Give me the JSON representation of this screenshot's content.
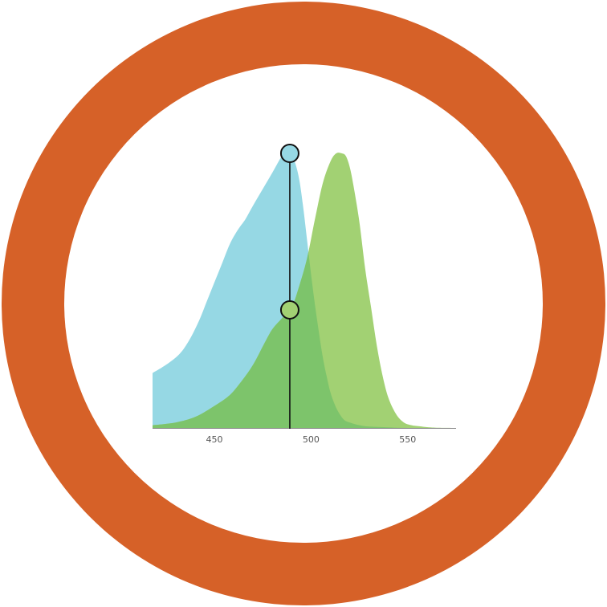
{
  "colors": {
    "ring": "#D66128",
    "inner": "#FFFFFF",
    "excitation_fill": "#96D8E4",
    "emission_fill": "#A2D173",
    "overlap_fill": "#7DC46B",
    "marker_line": "#111111",
    "axis_line": "#888888",
    "tick_text": "#555555"
  },
  "chart_data": {
    "type": "area",
    "xlim": [
      418,
      575
    ],
    "ylim": [
      0,
      1
    ],
    "xticks": [
      450,
      500,
      550
    ],
    "tick_labels": [
      "450",
      "500",
      "550"
    ],
    "grid": false,
    "series": [
      {
        "key": "excitation",
        "fill": "#96D8E4",
        "x": [
          418,
          425,
          432,
          437,
          442,
          446,
          450,
          454,
          458,
          462,
          466,
          470,
          475,
          480,
          484,
          486,
          488,
          490,
          492,
          494,
          496,
          498,
          500,
          502,
          504,
          506,
          508,
          510,
          512,
          514,
          517,
          520,
          525,
          530,
          540,
          550,
          575
        ],
        "y": [
          0.2,
          0.23,
          0.27,
          0.32,
          0.39,
          0.46,
          0.53,
          0.6,
          0.67,
          0.72,
          0.76,
          0.81,
          0.87,
          0.93,
          0.98,
          1.0,
          1.0,
          0.99,
          0.96,
          0.9,
          0.8,
          0.68,
          0.56,
          0.45,
          0.35,
          0.26,
          0.19,
          0.13,
          0.09,
          0.06,
          0.03,
          0.02,
          0.01,
          0.005,
          0.002,
          0.0,
          0.0
        ]
      },
      {
        "key": "emission",
        "fill": "#A2D173",
        "x": [
          418,
          430,
          440,
          450,
          458,
          464,
          470,
          476,
          480,
          485,
          490,
          494,
          498,
          502,
          506,
          510,
          513,
          516,
          518,
          520,
          522,
          525,
          528,
          531,
          534,
          537,
          540,
          544,
          548,
          552,
          556,
          560,
          565,
          575
        ],
        "y": [
          0.01,
          0.02,
          0.04,
          0.08,
          0.12,
          0.17,
          0.23,
          0.31,
          0.36,
          0.4,
          0.44,
          0.52,
          0.62,
          0.76,
          0.89,
          0.97,
          1.0,
          1.0,
          0.99,
          0.95,
          0.88,
          0.75,
          0.58,
          0.44,
          0.3,
          0.19,
          0.11,
          0.05,
          0.02,
          0.01,
          0.006,
          0.003,
          0.001,
          0.0
        ]
      }
    ],
    "markers": [
      {
        "series": "excitation",
        "x": 489,
        "y": 1.0,
        "fill": "#96D8E4"
      },
      {
        "series": "emission",
        "x": 489,
        "y": 0.43,
        "fill": "#A2D173"
      }
    ],
    "marker_line_x": 489
  }
}
